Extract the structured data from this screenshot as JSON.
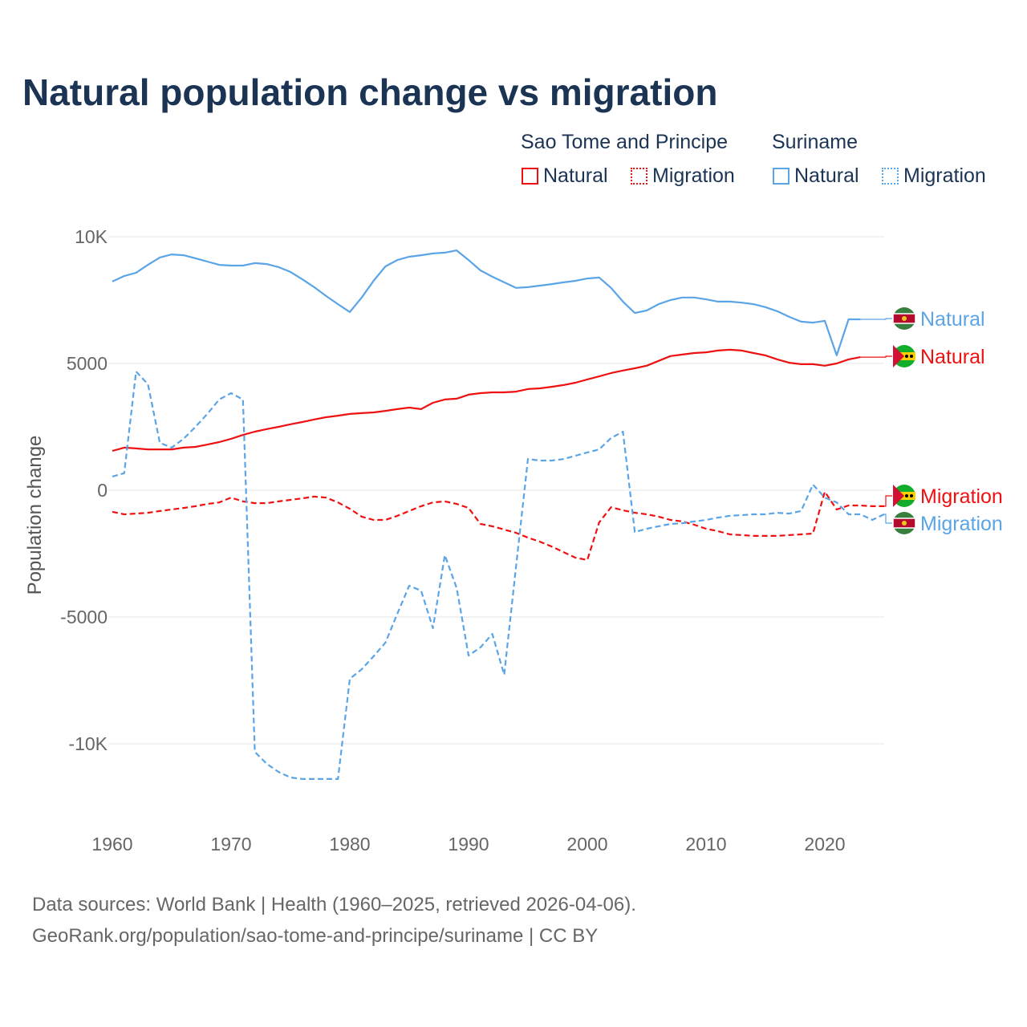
{
  "title": "Natural population change vs migration",
  "legend": {
    "groups": [
      {
        "name": "Sao Tome and Principe",
        "color": "#ee1111",
        "items": [
          "Natural",
          "Migration"
        ]
      },
      {
        "name": "Suriname",
        "color": "#5ba4e6",
        "items": [
          "Natural",
          "Migration"
        ]
      }
    ]
  },
  "footer": {
    "line1": "Data sources: World Bank | Health (1960–2025, retrieved 2026-04-06).",
    "line2": "GeoRank.org/population/sao-tome-and-principe/suriname | CC BY"
  },
  "chart_data": {
    "type": "line",
    "title": "Natural population change vs migration",
    "xlabel": "",
    "ylabel": "Population change",
    "xlim": [
      1960,
      2025
    ],
    "ylim": [
      -12000,
      10500
    ],
    "x_ticks": [
      1960,
      1970,
      1980,
      1990,
      2000,
      2010,
      2020
    ],
    "x_tick_labels": [
      "1960",
      "1970",
      "1980",
      "1990",
      "2000",
      "2010",
      "2020"
    ],
    "y_ticks": [
      10000,
      5000,
      0,
      -5000,
      -10000
    ],
    "y_tick_labels": [
      "10K",
      "5000",
      "0",
      "-5000",
      "-10K"
    ],
    "grid": true,
    "series": [
      {
        "name": "Suriname Natural",
        "label": "Natural",
        "country": "Suriname",
        "color": "#5ba4e6",
        "dash": false,
        "start": 1960,
        "values": [
          8230,
          8450,
          8580,
          8890,
          9180,
          9300,
          9270,
          9150,
          9020,
          8890,
          8860,
          8860,
          8960,
          8920,
          8800,
          8610,
          8320,
          8010,
          7660,
          7340,
          7030,
          7600,
          8260,
          8830,
          9080,
          9210,
          9270,
          9340,
          9370,
          9460,
          9080,
          8670,
          8420,
          8200,
          7980,
          8010,
          8070,
          8130,
          8200,
          8260,
          8350,
          8390,
          7980,
          7440,
          6990,
          7090,
          7340,
          7500,
          7600,
          7600,
          7530,
          7440,
          7440,
          7400,
          7340,
          7220,
          7060,
          6840,
          6650,
          6610,
          6680,
          5320,
          6740,
          6740
        ]
      },
      {
        "name": "Sao Tome and Principe Natural",
        "label": "Natural",
        "country": "Sao Tome and Principe",
        "color": "#ee1111",
        "dash": false,
        "start": 1960,
        "values": [
          1550,
          1680,
          1650,
          1610,
          1610,
          1610,
          1680,
          1710,
          1800,
          1900,
          2030,
          2180,
          2310,
          2410,
          2500,
          2600,
          2690,
          2790,
          2880,
          2940,
          3010,
          3040,
          3070,
          3130,
          3200,
          3260,
          3200,
          3450,
          3580,
          3610,
          3770,
          3830,
          3860,
          3860,
          3890,
          3990,
          4020,
          4080,
          4150,
          4240,
          4370,
          4490,
          4620,
          4720,
          4810,
          4910,
          5100,
          5290,
          5350,
          5410,
          5440,
          5510,
          5540,
          5510,
          5410,
          5320,
          5160,
          5030,
          4970,
          4970,
          4910,
          5000,
          5160,
          5250
        ]
      },
      {
        "name": "Sao Tome and Principe Migration",
        "label": "Migration",
        "country": "Sao Tome and Principe",
        "color": "#ee1111",
        "dash": true,
        "start": 1960,
        "values": [
          -850,
          -950,
          -920,
          -890,
          -820,
          -760,
          -700,
          -630,
          -540,
          -480,
          -290,
          -440,
          -510,
          -510,
          -440,
          -380,
          -320,
          -250,
          -290,
          -480,
          -730,
          -1040,
          -1170,
          -1170,
          -1010,
          -820,
          -630,
          -480,
          -440,
          -540,
          -700,
          -1330,
          -1420,
          -1550,
          -1680,
          -1870,
          -2030,
          -2220,
          -2440,
          -2660,
          -2750,
          -1270,
          -670,
          -790,
          -890,
          -950,
          -1040,
          -1170,
          -1230,
          -1360,
          -1520,
          -1610,
          -1740,
          -1770,
          -1800,
          -1800,
          -1800,
          -1770,
          -1740,
          -1710,
          -60,
          -760,
          -600,
          -600,
          -630,
          -630
        ]
      },
      {
        "name": "Suriname Migration",
        "label": "Migration",
        "country": "Suriname",
        "color": "#5ba4e6",
        "dash": true,
        "start": 1960,
        "values": [
          540,
          670,
          4680,
          4180,
          1870,
          1680,
          2030,
          2500,
          3010,
          3580,
          3830,
          3580,
          -10320,
          -10790,
          -11110,
          -11330,
          -11390,
          -11390,
          -11390,
          -11390,
          -7440,
          -7060,
          -6550,
          -6010,
          -4870,
          -3770,
          -3960,
          -5440,
          -2560,
          -3860,
          -6520,
          -6200,
          -5670,
          -7280,
          -3000,
          1230,
          1170,
          1170,
          1230,
          1360,
          1490,
          1610,
          2060,
          2310,
          -1650,
          -1520,
          -1420,
          -1330,
          -1300,
          -1230,
          -1170,
          -1080,
          -1010,
          -980,
          -950,
          -950,
          -890,
          -920,
          -820,
          220,
          -290,
          -480,
          -950,
          -950,
          -1170,
          -950
        ]
      }
    ],
    "end_labels": [
      {
        "text": "Natural",
        "series": 0
      },
      {
        "text": "Natural",
        "series": 1
      },
      {
        "text": "Migration",
        "series": 2
      },
      {
        "text": "Migration",
        "series": 3
      }
    ]
  }
}
